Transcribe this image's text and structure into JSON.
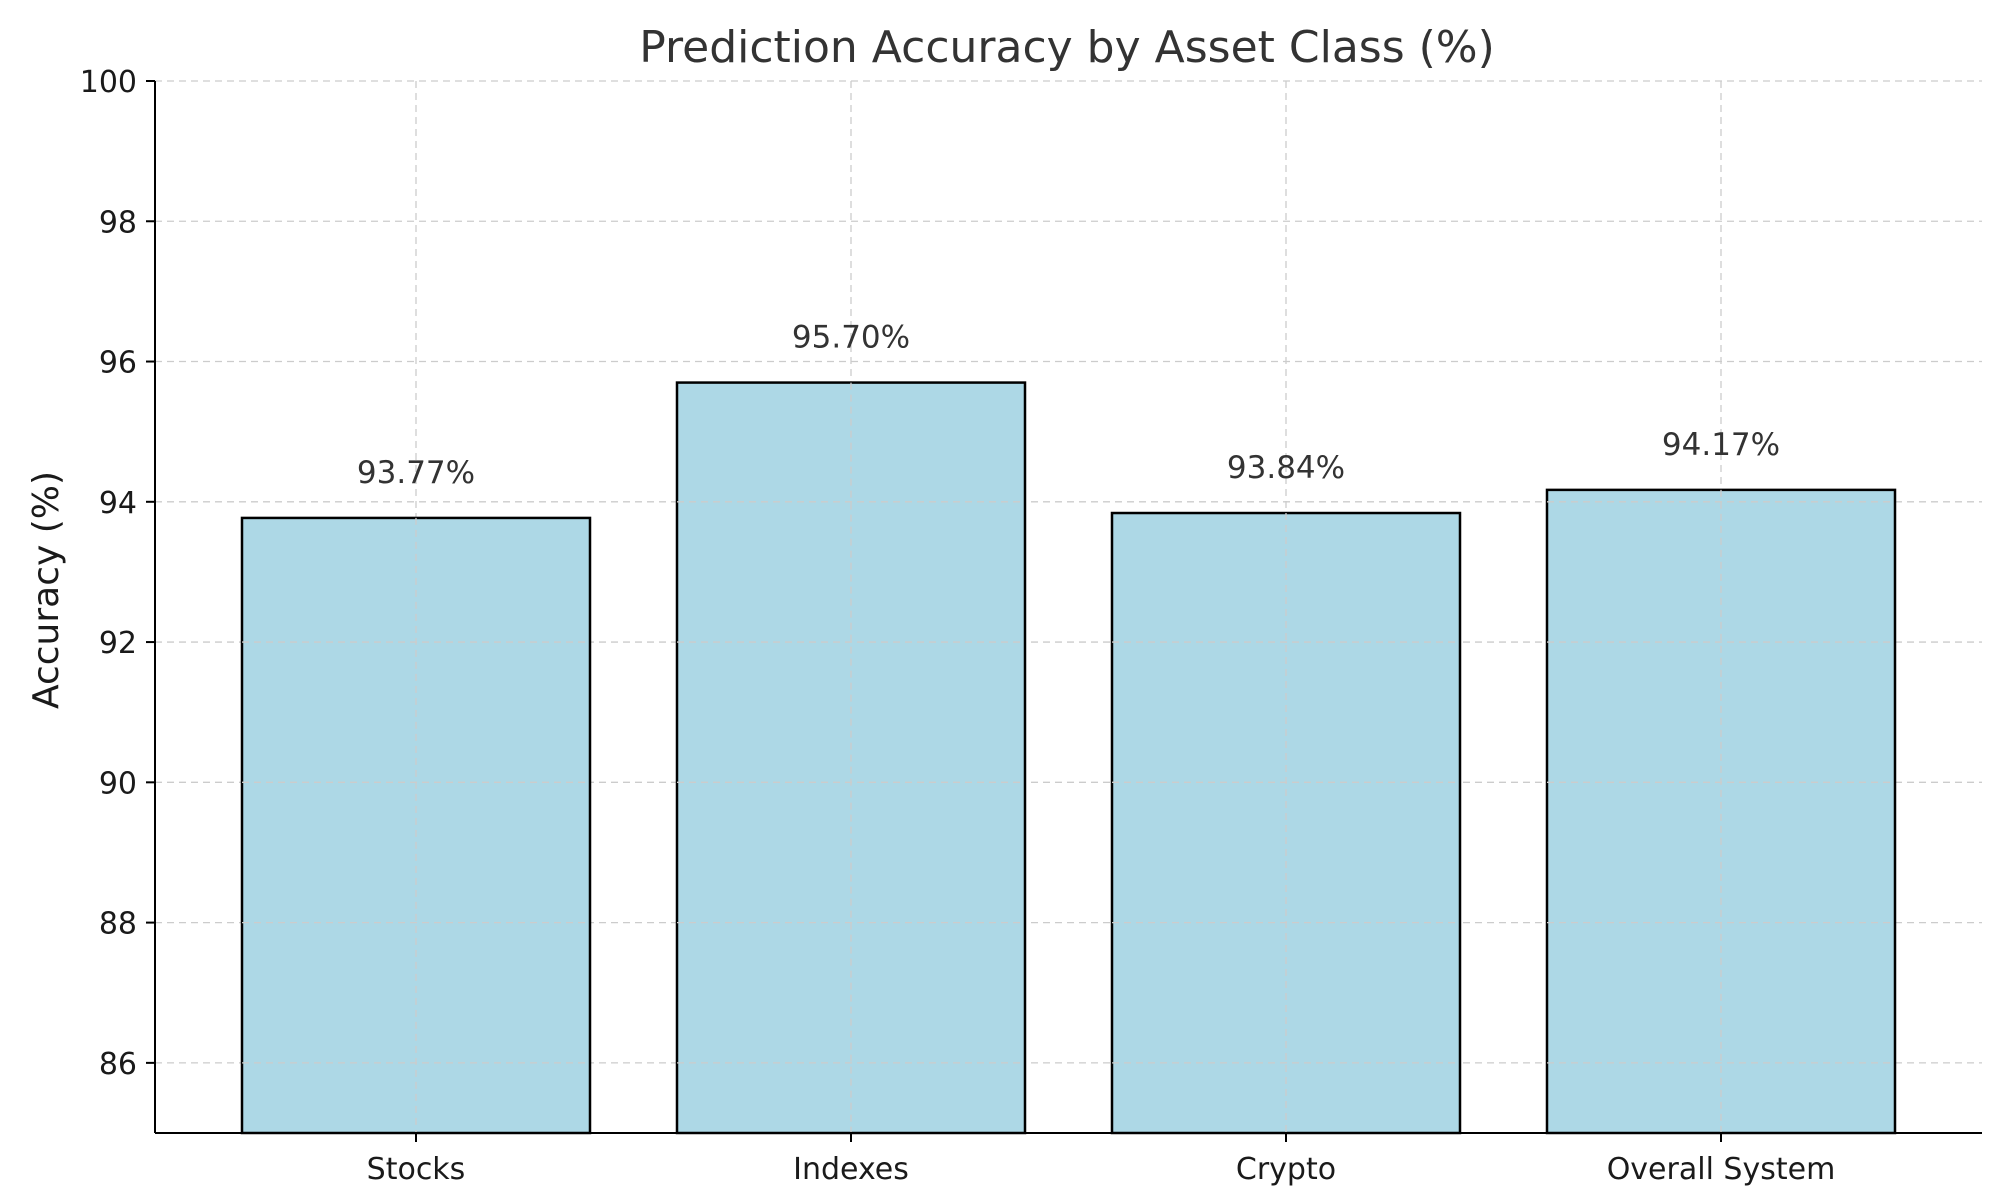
{
  "chart_data": {
    "type": "bar",
    "title": "Prediction Accuracy by Asset Class (%)",
    "xlabel": "",
    "ylabel": "Accuracy (%)",
    "categories": [
      "Stocks",
      "Indexes",
      "Crypto",
      "Overall System"
    ],
    "values": [
      93.77,
      95.7,
      93.84,
      94.17
    ],
    "data_labels": [
      "93.77%",
      "95.70%",
      "93.84%",
      "94.17%"
    ],
    "ylim": [
      85,
      100
    ],
    "yticks": [
      86,
      88,
      90,
      92,
      94,
      96,
      98,
      100
    ],
    "grid": true,
    "legend": "none",
    "bar_color": "#add8e6",
    "bar_edge_color": "#000000"
  }
}
